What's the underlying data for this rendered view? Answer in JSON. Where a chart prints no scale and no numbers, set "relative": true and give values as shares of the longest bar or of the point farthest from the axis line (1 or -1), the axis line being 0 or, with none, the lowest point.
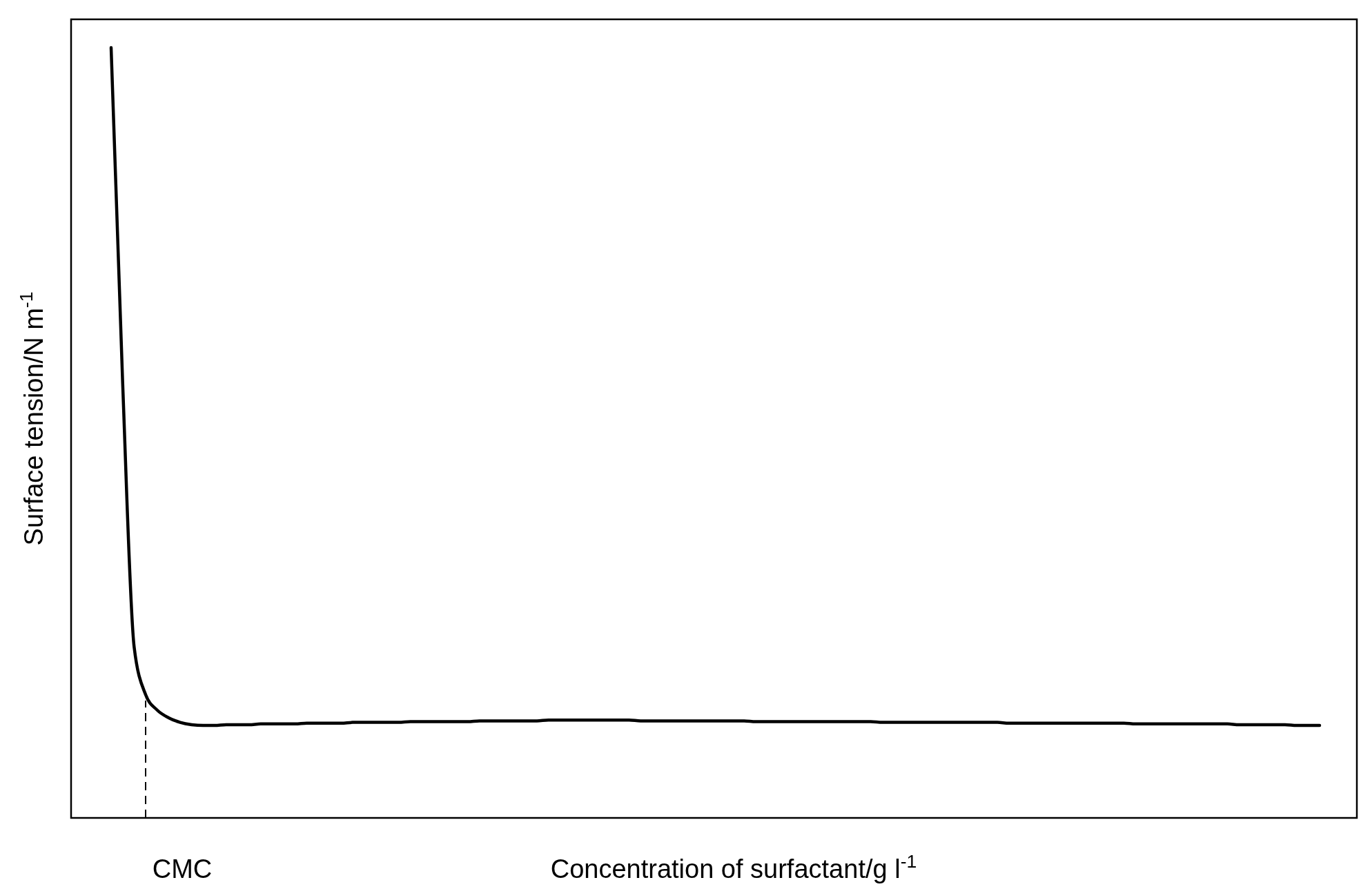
{
  "chart_data": {
    "type": "line",
    "relative": true,
    "xlabel": "Concentration of surfactant/g l$^{-1}$",
    "ylabel": "Surface tension/N m$^{-1}$",
    "categories": [
      null,
      null,
      null,
      null,
      null,
      null,
      null,
      null,
      null,
      null,
      null,
      null,
      null,
      null,
      null,
      null,
      null,
      null,
      null,
      null,
      null,
      null,
      null,
      null,
      null,
      null,
      null,
      null,
      null,
      null,
      null,
      null,
      null,
      null,
      null,
      null,
      null,
      null,
      null,
      null,
      null,
      null,
      null,
      null,
      null,
      null,
      null,
      null,
      null,
      null,
      null,
      null,
      null,
      null,
      null,
      null,
      null,
      null,
      null,
      null,
      null,
      null,
      null,
      null,
      null,
      null,
      null,
      null,
      null,
      null,
      null,
      null,
      null,
      null,
      null,
      null,
      null,
      null,
      null,
      null,
      null,
      null,
      null,
      null,
      null,
      null,
      null,
      null,
      null,
      null,
      null,
      null,
      null,
      null,
      null,
      null,
      null,
      null,
      null,
      null,
      null,
      null,
      null,
      null,
      null,
      null
    ],
    "values": [
      1.0,
      0.566,
      0.222,
      0.16,
      0.14,
      0.13,
      0.124,
      0.121,
      0.12,
      0.12,
      0.121,
      0.121,
      0.121,
      0.122,
      0.122,
      0.122,
      0.122,
      0.123,
      0.123,
      0.123,
      0.123,
      0.124,
      0.124,
      0.124,
      0.124,
      0.124,
      0.125,
      0.125,
      0.125,
      0.125,
      0.125,
      0.125,
      0.126,
      0.126,
      0.126,
      0.126,
      0.126,
      0.126,
      0.127,
      0.127,
      0.127,
      0.127,
      0.127,
      0.127,
      0.127,
      0.127,
      0.126,
      0.126,
      0.126,
      0.126,
      0.126,
      0.126,
      0.126,
      0.126,
      0.126,
      0.126,
      0.125,
      0.125,
      0.125,
      0.125,
      0.125,
      0.125,
      0.125,
      0.125,
      0.125,
      0.125,
      0.125,
      0.124,
      0.124,
      0.124,
      0.124,
      0.124,
      0.124,
      0.124,
      0.124,
      0.124,
      0.124,
      0.124,
      0.123,
      0.123,
      0.123,
      0.123,
      0.123,
      0.123,
      0.123,
      0.123,
      0.123,
      0.123,
      0.123,
      0.122,
      0.122,
      0.122,
      0.122,
      0.122,
      0.122,
      0.122,
      0.122,
      0.122,
      0.121,
      0.121,
      0.121,
      0.121,
      0.121,
      0.12,
      0.12,
      0.12
    ],
    "color": "#000000",
    "annotations": [
      "CMC"
    ]
  }
}
